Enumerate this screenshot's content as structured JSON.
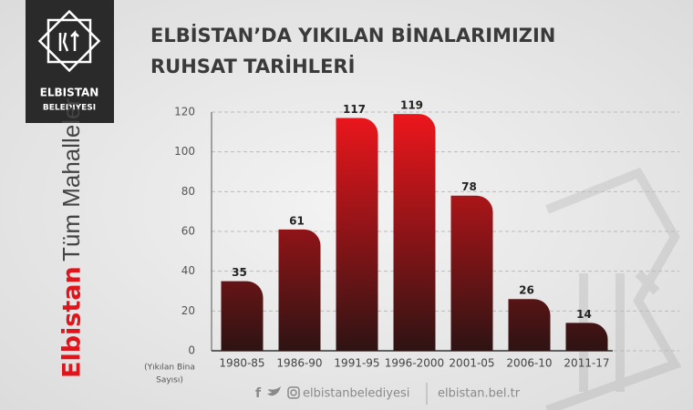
{
  "logo": {
    "line1": "ELBISTAN",
    "line2": "BELEDIYESI"
  },
  "side": {
    "city": "Elbistan",
    "scope": "Tüm Mahalleler"
  },
  "footer": {
    "social": "elbistanbelediyesi",
    "site": "elbistan.bel.tr"
  },
  "chart_data": {
    "type": "bar",
    "title": [
      "ELBİSTAN’DA YIKILAN BİNALARIMIZIN",
      "RUHSAT TARİHLERİ"
    ],
    "ylabel": [
      "(Yıkılan Bina",
      "Sayısı)"
    ],
    "categories": [
      "1980-85",
      "1986-90",
      "1991-95",
      "1996-2000",
      "2001-05",
      "2006-10",
      "2011-17"
    ],
    "values": [
      35,
      61,
      117,
      119,
      78,
      26,
      14
    ],
    "color": "#ee161c",
    "color_dark": "#2e1313",
    "ylim": [
      0,
      120
    ],
    "yticks": [
      0,
      20,
      40,
      60,
      80,
      100,
      120
    ],
    "grid": true
  }
}
